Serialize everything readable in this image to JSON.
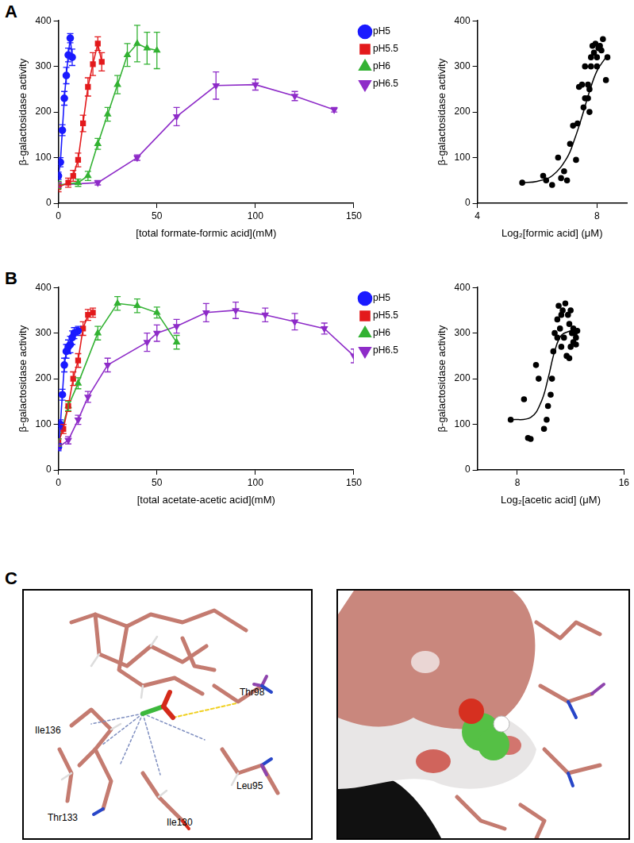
{
  "panels": [
    "A",
    "B",
    "C"
  ],
  "chart_data": [
    {
      "type": "line",
      "x_label": "[total formate-formic acid](mM)",
      "y_label": "β-galactosidase activity",
      "xlim": [
        0,
        150
      ],
      "xticks": [
        0,
        50,
        100,
        150
      ],
      "ylim": [
        0,
        400
      ],
      "yticks": [
        0,
        100,
        200,
        300,
        400
      ],
      "grid": false,
      "legend": "right",
      "series": [
        {
          "name": "pH5",
          "color": "#1a1aff",
          "marker": "circle",
          "x": [
            0,
            1,
            2,
            3,
            4,
            5,
            6,
            7
          ],
          "values": [
            60,
            90,
            160,
            230,
            280,
            325,
            362,
            320
          ],
          "errors": [
            8,
            10,
            12,
            15,
            18,
            15,
            10,
            18
          ]
        },
        {
          "name": "pH5.5",
          "color": "#e31a1c",
          "marker": "square",
          "x": [
            0,
            5,
            7.5,
            10,
            12.5,
            15,
            17.5,
            20,
            22
          ],
          "values": [
            35,
            45,
            60,
            95,
            175,
            255,
            305,
            350,
            310
          ],
          "errors": [
            10,
            10,
            12,
            15,
            18,
            20,
            25,
            15,
            20
          ]
        },
        {
          "name": "pH6",
          "color": "#33b233",
          "marker": "triangle",
          "x": [
            0,
            10,
            15,
            20,
            25,
            30,
            35,
            40,
            45,
            50
          ],
          "values": [
            40,
            45,
            60,
            130,
            195,
            260,
            325,
            350,
            340,
            335
          ],
          "errors": [
            8,
            8,
            10,
            12,
            15,
            20,
            25,
            40,
            35,
            40
          ]
        },
        {
          "name": "pH6.5",
          "color": "#8e2cc8",
          "marker": "triangle-down",
          "x": [
            0,
            20,
            40,
            60,
            80,
            100,
            120,
            140
          ],
          "values": [
            40,
            45,
            100,
            190,
            258,
            260,
            235,
            205
          ],
          "errors": [
            5,
            5,
            6,
            20,
            30,
            12,
            10,
            5
          ]
        }
      ]
    },
    {
      "type": "scatter",
      "x_label": "Log₂[formic acid] (μM)",
      "y_label": "β-galactosidase activity",
      "xlim": [
        4,
        9
      ],
      "xticks": [
        4,
        8
      ],
      "ylim": [
        0,
        400
      ],
      "yticks": [
        0,
        100,
        200,
        300,
        400
      ],
      "grid": false,
      "series": [
        {
          "type": "scatter",
          "color": "#000000",
          "marker": "circle",
          "x": [
            5.5,
            6.2,
            6.3,
            6.5,
            6.7,
            6.8,
            6.9,
            7.0,
            7.1,
            7.2,
            7.3,
            7.35,
            7.4,
            7.5,
            7.55,
            7.6,
            7.6,
            7.7,
            7.75,
            7.75,
            7.8,
            7.8,
            7.9,
            7.95,
            8.0,
            8.05,
            8.1,
            8.15,
            8.2,
            8.3,
            8.35,
            7.85,
            7.7,
            8.0
          ],
          "values": [
            45,
            60,
            50,
            40,
            100,
            55,
            70,
            50,
            130,
            170,
            95,
            175,
            255,
            260,
            210,
            300,
            230,
            260,
            250,
            200,
            320,
            300,
            330,
            350,
            320,
            340,
            345,
            335,
            360,
            270,
            320,
            345,
            230,
            300
          ]
        },
        {
          "type": "line",
          "color": "#000000",
          "x": [
            5.5,
            6.0,
            6.5,
            7.0,
            7.25,
            7.5,
            7.75,
            8.0,
            8.3
          ],
          "values": [
            45,
            48,
            60,
            100,
            140,
            190,
            245,
            290,
            320
          ]
        }
      ]
    },
    {
      "type": "line",
      "x_label": "[total acetate-acetic acid](mM)",
      "y_label": "β-galactosidase activity",
      "xlim": [
        0,
        150
      ],
      "xticks": [
        0,
        50,
        100,
        150
      ],
      "ylim": [
        0,
        400
      ],
      "yticks": [
        0,
        100,
        200,
        300,
        400
      ],
      "grid": false,
      "legend": "right",
      "series": [
        {
          "name": "pH5",
          "color": "#1a1aff",
          "marker": "circle",
          "x": [
            0,
            1,
            2,
            3,
            4,
            5,
            6,
            7,
            8,
            10
          ],
          "values": [
            50,
            100,
            165,
            230,
            260,
            270,
            275,
            290,
            300,
            305
          ],
          "errors": [
            8,
            10,
            12,
            15,
            15,
            15,
            18,
            15,
            12,
            10
          ]
        },
        {
          "name": "pH5.5",
          "color": "#e31a1c",
          "marker": "square",
          "x": [
            0,
            2.5,
            5,
            7.5,
            10,
            12.5,
            15,
            17.5
          ],
          "values": [
            60,
            90,
            140,
            200,
            240,
            310,
            340,
            345
          ],
          "errors": [
            8,
            10,
            12,
            15,
            15,
            15,
            12,
            10
          ]
        },
        {
          "name": "pH6",
          "color": "#33b233",
          "marker": "triangle",
          "x": [
            0,
            5,
            10,
            20,
            30,
            40,
            50,
            60
          ],
          "values": [
            60,
            140,
            190,
            300,
            365,
            360,
            345,
            280
          ],
          "errors": [
            8,
            10,
            12,
            15,
            15,
            15,
            12,
            15
          ]
        },
        {
          "name": "pH6.5",
          "color": "#8e2cc8",
          "marker": "triangle-down",
          "x": [
            0,
            5,
            10,
            15,
            25,
            45,
            50,
            60,
            75,
            90,
            105,
            120,
            135,
            150
          ],
          "values": [
            50,
            65,
            110,
            160,
            230,
            280,
            300,
            315,
            345,
            350,
            340,
            325,
            310,
            250
          ],
          "errors": [
            5,
            8,
            10,
            12,
            15,
            20,
            18,
            15,
            20,
            18,
            15,
            18,
            12,
            15
          ]
        }
      ]
    },
    {
      "type": "scatter",
      "x_label": "Log₂[acetic acid] (μM)",
      "y_label": "β-galactosidase activity",
      "xlim": [
        5,
        16
      ],
      "xticks": [
        8,
        16
      ],
      "ylim": [
        0,
        400
      ],
      "yticks": [
        0,
        100,
        200,
        300,
        400
      ],
      "grid": false,
      "series": [
        {
          "type": "scatter",
          "color": "#000000",
          "marker": "circle",
          "x": [
            7.5,
            8.5,
            8.8,
            9.0,
            9.4,
            9.6,
            10.0,
            10.2,
            10.3,
            10.5,
            10.6,
            10.7,
            10.8,
            11.0,
            11.1,
            11.2,
            11.3,
            11.4,
            11.5,
            11.6,
            11.8,
            11.9,
            12.0,
            12.1,
            12.2,
            12.3,
            12.4,
            12.5,
            11.7,
            11.9,
            12.2,
            11.0,
            11.3,
            12.0,
            12.4
          ],
          "values": [
            110,
            155,
            70,
            68,
            230,
            200,
            90,
            110,
            140,
            165,
            200,
            260,
            300,
            330,
            360,
            310,
            340,
            350,
            290,
            365,
            340,
            320,
            270,
            300,
            280,
            300,
            290,
            305,
            250,
            245,
            310,
            290,
            270,
            350,
            275
          ]
        },
        {
          "type": "line",
          "color": "#000000",
          "x": [
            7.5,
            9.0,
            9.8,
            10.3,
            10.8,
            11.3,
            12.0,
            12.5
          ],
          "values": [
            110,
            115,
            150,
            200,
            260,
            295,
            305,
            308
          ]
        }
      ]
    }
  ],
  "panel_c": {
    "left_labels": [
      "Thr98",
      "Ile136",
      "Thr133",
      "Ile130",
      "Leu95"
    ]
  }
}
